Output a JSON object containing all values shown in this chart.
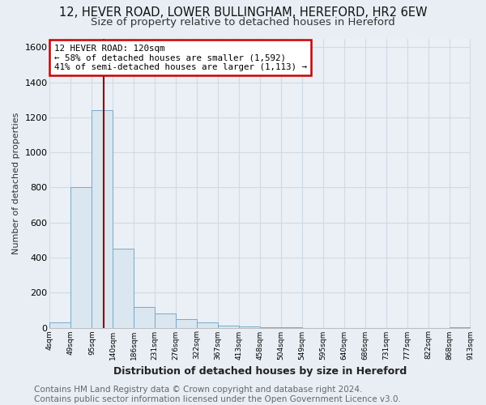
{
  "title": "12, HEVER ROAD, LOWER BULLINGHAM, HEREFORD, HR2 6EW",
  "subtitle": "Size of property relative to detached houses in Hereford",
  "xlabel": "Distribution of detached houses by size in Hereford",
  "ylabel": "Number of detached properties",
  "footer_line1": "Contains HM Land Registry data © Crown copyright and database right 2024.",
  "footer_line2": "Contains public sector information licensed under the Open Government Licence v3.0.",
  "bar_left_edges": [
    4,
    49,
    95,
    140,
    186,
    231,
    276,
    322,
    367,
    413,
    458,
    504,
    549,
    595,
    640,
    686,
    731,
    777,
    822,
    868
  ],
  "bar_right_edges": [
    49,
    95,
    140,
    186,
    231,
    276,
    322,
    367,
    413,
    458,
    504,
    549,
    595,
    640,
    686,
    731,
    777,
    822,
    868,
    913
  ],
  "bar_heights": [
    30,
    800,
    1240,
    450,
    120,
    80,
    50,
    30,
    10,
    5,
    3,
    1,
    0,
    0,
    0,
    0,
    0,
    0,
    0,
    1
  ],
  "bar_color": "#dae6f0",
  "bar_edge_color": "#7aaac8",
  "property_size": 120,
  "vline_color": "#8b0000",
  "annotation_line1": "12 HEVER ROAD: 120sqm",
  "annotation_line2": "← 58% of detached houses are smaller (1,592)",
  "annotation_line3": "41% of semi-detached houses are larger (1,113) →",
  "annotation_box_color": "#cc0000",
  "annotation_bg": "#ffffff",
  "ylim": [
    0,
    1650
  ],
  "yticks": [
    0,
    200,
    400,
    600,
    800,
    1000,
    1200,
    1400,
    1600
  ],
  "xtick_labels": [
    "4sqm",
    "49sqm",
    "95sqm",
    "140sqm",
    "186sqm",
    "231sqm",
    "276sqm",
    "322sqm",
    "367sqm",
    "413sqm",
    "458sqm",
    "504sqm",
    "549sqm",
    "595sqm",
    "640sqm",
    "686sqm",
    "731sqm",
    "777sqm",
    "822sqm",
    "868sqm",
    "913sqm"
  ],
  "xtick_positions": [
    4,
    49,
    95,
    140,
    186,
    231,
    276,
    322,
    367,
    413,
    458,
    504,
    549,
    595,
    640,
    686,
    731,
    777,
    822,
    868,
    913
  ],
  "bg_color": "#e8eef4",
  "plot_bg_color": "#eaf0f6",
  "grid_color": "#d0dae6",
  "title_fontsize": 10.5,
  "subtitle_fontsize": 9.5,
  "footer_fontsize": 7.5,
  "xlim": [
    4,
    913
  ]
}
